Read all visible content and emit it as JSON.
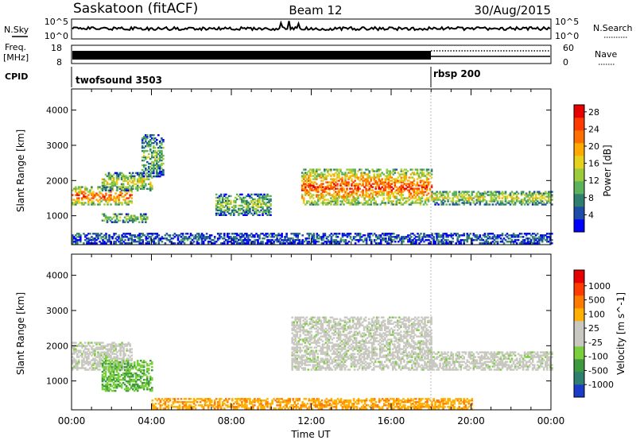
{
  "header": {
    "title_left": "Saskatoon (fitACF)",
    "title_center": "Beam 12",
    "title_right": "30/Aug/2015"
  },
  "top_panels": {
    "nsky_label": "N.Sky",
    "nsearch_label": "N.Search",
    "freq_label_line1": "Freq.",
    "freq_label_line2": "[MHz]",
    "nave_label": "Nave",
    "cpid_label": "CPID",
    "noise_left_ticks": [
      "10^5",
      "10^0"
    ],
    "noise_right_ticks": [
      "10^5",
      "10^0"
    ],
    "freq_left_ticks": [
      "18",
      "8"
    ],
    "freq_right_ticks": [
      "60",
      "0"
    ]
  },
  "cpid_segments": [
    {
      "label": "twofsound 3503",
      "start_hour": 0
    },
    {
      "label": "rbsp 200",
      "start_hour": 18
    }
  ],
  "chart_data": [
    {
      "type": "heatmap",
      "name": "power",
      "xlabel": "",
      "ylabel": "Slant Range [km]",
      "xlim": [
        0,
        24
      ],
      "ylim": [
        180,
        4600
      ],
      "yticks": [
        "1000",
        "2000",
        "3000",
        "4000"
      ],
      "colorbar_label": "Power [dB]",
      "colorbar_ticks": [
        "4",
        "8",
        "12",
        "16",
        "20",
        "24",
        "28"
      ],
      "colorbar_colors": [
        "#0000ff",
        "#1e4da8",
        "#2f7f6e",
        "#5bb45b",
        "#9ccc3c",
        "#e6d21e",
        "#ffaa00",
        "#ff7000",
        "#ff3a00",
        "#e60000"
      ],
      "regions": [
        {
          "t0": 0.0,
          "t1": 3.0,
          "r0": 1300,
          "r1": 1800,
          "level": 0.85
        },
        {
          "t0": 1.5,
          "t1": 4.0,
          "r0": 1700,
          "r1": 2200,
          "level": 0.55
        },
        {
          "t0": 1.5,
          "t1": 3.8,
          "r0": 800,
          "r1": 1050,
          "level": 0.5
        },
        {
          "t0": 3.5,
          "t1": 4.6,
          "r0": 2100,
          "r1": 3300,
          "level": 0.4
        },
        {
          "t0": 7.2,
          "t1": 10.0,
          "r0": 1000,
          "r1": 1600,
          "level": 0.45
        },
        {
          "t0": 11.5,
          "t1": 18.0,
          "r0": 1300,
          "r1": 2300,
          "level": 0.85
        },
        {
          "t0": 18.0,
          "t1": 24.0,
          "r0": 1300,
          "r1": 1700,
          "level": 0.55
        },
        {
          "t0": 0.0,
          "t1": 24.0,
          "r0": 200,
          "r1": 500,
          "level": 0.2
        }
      ]
    },
    {
      "type": "heatmap",
      "name": "velocity",
      "xlabel": "Time UT",
      "ylabel": "Slant Range [km]",
      "xlim": [
        0,
        24
      ],
      "ylim": [
        180,
        4600
      ],
      "xticks": [
        "00:00",
        "04:00",
        "08:00",
        "12:00",
        "16:00",
        "20:00",
        "00:00"
      ],
      "yticks": [
        "1000",
        "2000",
        "3000",
        "4000"
      ],
      "colorbar_label": "Velocity [m s^-1]",
      "colorbar_ticks": [
        "1000",
        "500",
        "100",
        "25",
        "-25",
        "-100",
        "-500",
        "-1000"
      ],
      "colorbar_colors": [
        "#1a3cc8",
        "#2f7f6e",
        "#3e9a3e",
        "#7ccf3c",
        "#c8c8c0",
        "#c8c8c0",
        "#ffb000",
        "#ff7a00",
        "#ff3c00",
        "#e60000"
      ],
      "regions": [
        {
          "t0": 0.0,
          "t1": 3.0,
          "r0": 1300,
          "r1": 2100,
          "level": 0.0
        },
        {
          "t0": 1.5,
          "t1": 4.0,
          "r0": 700,
          "r1": 1600,
          "level": 0.3
        },
        {
          "t0": 11.0,
          "t1": 18.0,
          "r0": 1300,
          "r1": 2800,
          "level": 0.0
        },
        {
          "t0": 18.0,
          "t1": 24.0,
          "r0": 1300,
          "r1": 1800,
          "level": 0.0
        },
        {
          "t0": 4.0,
          "t1": 20.0,
          "r0": 200,
          "r1": 500,
          "level": -0.6
        }
      ]
    }
  ]
}
